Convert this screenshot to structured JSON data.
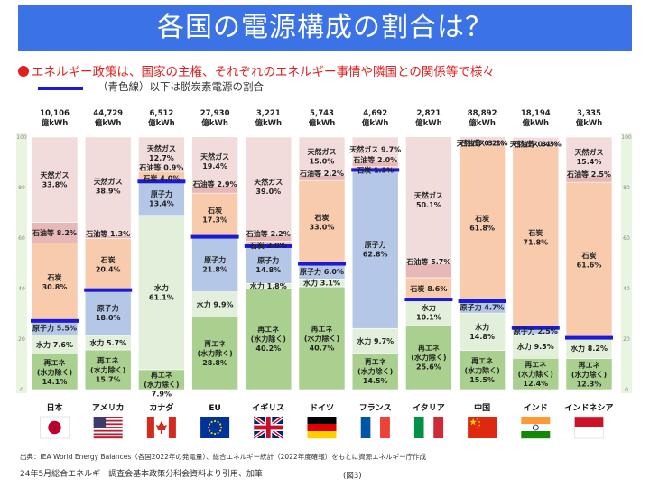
{
  "page": {
    "title": "各国の電源構成の割合は？",
    "subtitle": "エネルギー政策は、国家の主権、それぞれのエネルギー事情や隣国との関係等で様々",
    "legend_text": "（青色線）以下は脱炭素電源の割合",
    "source": "出典：IEA World Energy Balances（各国2022年の発電量）、総合エネルギー統計（2022年度確報）をもとに資源エネルギー庁作成",
    "note": "24年5月総合エネルギー調査会基本政策分科会資料より引用、加筆",
    "figure_label": "(図3)",
    "unit": "億kWh"
  },
  "chart_data": {
    "type": "bar",
    "stacked": true,
    "ylim": [
      0,
      100
    ],
    "y_ticks": [
      0,
      20,
      40,
      60,
      80,
      100
    ],
    "colors": {
      "renewable": "#a9d08e",
      "hydro": "#e2efda",
      "nuclear": "#b4c7e7",
      "coal": "#f8cbad",
      "oil": "#e6b8b7",
      "gas": "#f2dcdb",
      "decarb_line": "#1a1ad8"
    },
    "countries": [
      {
        "name": "日本",
        "total": "10,106",
        "flag": "japan",
        "segments": [
          {
            "type": "renewable",
            "value": 14.1,
            "label": "再エネ\n(水力除く)\n14.1%"
          },
          {
            "type": "hydro",
            "value": 7.6,
            "label": "水力 7.6%"
          },
          {
            "type": "nuclear",
            "value": 5.5,
            "label": "原子力 5.5%"
          },
          {
            "type": "coal",
            "value": 30.8,
            "label": "石炭\n30.8%"
          },
          {
            "type": "oil",
            "value": 8.2,
            "label": "石油等 8.2%"
          },
          {
            "type": "gas",
            "value": 33.8,
            "label": "天然ガス\n33.8%"
          }
        ]
      },
      {
        "name": "アメリカ",
        "total": "44,729",
        "flag": "usa",
        "segments": [
          {
            "type": "renewable",
            "value": 15.7,
            "label": "再エネ\n(水力除く)\n15.7%"
          },
          {
            "type": "hydro",
            "value": 5.7,
            "label": "水力 5.7%"
          },
          {
            "type": "nuclear",
            "value": 18.0,
            "label": "原子力\n18.0%"
          },
          {
            "type": "coal",
            "value": 20.4,
            "label": "石炭\n20.4%"
          },
          {
            "type": "oil",
            "value": 1.3,
            "label": "石油等 1.3%"
          },
          {
            "type": "gas",
            "value": 38.9,
            "label": "天然ガス\n38.9%"
          }
        ]
      },
      {
        "name": "カナダ",
        "total": "6,512",
        "flag": "canada",
        "segments": [
          {
            "type": "renewable",
            "value": 7.9,
            "label": "再エネ\n(水力除く)\n7.9%"
          },
          {
            "type": "hydro",
            "value": 61.1,
            "label": "水力\n61.1%"
          },
          {
            "type": "nuclear",
            "value": 13.4,
            "label": "原子力\n13.4%"
          },
          {
            "type": "coal",
            "value": 4.0,
            "label": "石炭 4.0%"
          },
          {
            "type": "oil",
            "value": 0.9,
            "label": "石油等 0.9%"
          },
          {
            "type": "gas",
            "value": 12.7,
            "label": "天然ガス\n12.7%"
          }
        ]
      },
      {
        "name": "EU",
        "total": "27,930",
        "flag": "eu",
        "segments": [
          {
            "type": "renewable",
            "value": 28.8,
            "label": "再エネ\n(水力除く)\n28.8%"
          },
          {
            "type": "hydro",
            "value": 9.9,
            "label": "水力 9.9%"
          },
          {
            "type": "nuclear",
            "value": 21.8,
            "label": "原子力\n21.8%"
          },
          {
            "type": "coal",
            "value": 17.3,
            "label": "石炭\n17.3%"
          },
          {
            "type": "oil",
            "value": 2.9,
            "label": "石油等 2.9%"
          },
          {
            "type": "gas",
            "value": 19.4,
            "label": "天然ガス\n19.4%"
          }
        ]
      },
      {
        "name": "イギリス",
        "total": "3,221",
        "flag": "uk",
        "segments": [
          {
            "type": "renewable",
            "value": 40.2,
            "label": "再エネ\n(水力除く)\n40.2%"
          },
          {
            "type": "hydro",
            "value": 1.8,
            "label": "水力 1.8%"
          },
          {
            "type": "nuclear",
            "value": 14.8,
            "label": "原子力\n14.8%"
          },
          {
            "type": "coal",
            "value": 2.0,
            "label": "石炭 2.0%"
          },
          {
            "type": "oil",
            "value": 2.2,
            "label": "石油等 2.2%"
          },
          {
            "type": "gas",
            "value": 39.0,
            "label": "天然ガス\n39.0%"
          }
        ]
      },
      {
        "name": "ドイツ",
        "total": "5,743",
        "flag": "germany",
        "segments": [
          {
            "type": "renewable",
            "value": 40.7,
            "label": "再エネ\n(水力除く)\n40.7%"
          },
          {
            "type": "hydro",
            "value": 3.1,
            "label": "水力 3.1%"
          },
          {
            "type": "nuclear",
            "value": 6.0,
            "label": "原子力 6.0%"
          },
          {
            "type": "coal",
            "value": 33.0,
            "label": "石炭\n33.0%"
          },
          {
            "type": "oil",
            "value": 2.2,
            "label": "石油等 2.2%"
          },
          {
            "type": "gas",
            "value": 15.0,
            "label": "天然ガス\n15.0%"
          }
        ]
      },
      {
        "name": "フランス",
        "total": "4,692",
        "flag": "france",
        "segments": [
          {
            "type": "renewable",
            "value": 14.5,
            "label": "再エネ\n(水力除く)\n14.5%"
          },
          {
            "type": "hydro",
            "value": 9.7,
            "label": "水力 9.7%"
          },
          {
            "type": "nuclear",
            "value": 62.8,
            "label": "原子力\n62.8%"
          },
          {
            "type": "coal",
            "value": 1.3,
            "label": "石炭 1.3%"
          },
          {
            "type": "oil",
            "value": 2.0,
            "label": "石油等 2.0%"
          },
          {
            "type": "gas",
            "value": 9.7,
            "label": "天然ガス 9.7%"
          }
        ]
      },
      {
        "name": "イタリア",
        "total": "2,821",
        "flag": "italy",
        "segments": [
          {
            "type": "renewable",
            "value": 25.6,
            "label": "再エネ\n(水力除く)\n25.6%"
          },
          {
            "type": "hydro",
            "value": 10.1,
            "label": "水力\n10.1%"
          },
          {
            "type": "nuclear",
            "value": 0,
            "label": ""
          },
          {
            "type": "coal",
            "value": 8.6,
            "label": "石炭 8.6%"
          },
          {
            "type": "oil",
            "value": 5.7,
            "label": "石油等 5.7%"
          },
          {
            "type": "gas",
            "value": 50.1,
            "label": "天然ガス\n50.1%"
          }
        ]
      },
      {
        "name": "中国",
        "total": "88,892",
        "flag": "china",
        "segments": [
          {
            "type": "renewable",
            "value": 15.5,
            "label": "再エネ\n(水力除く)\n15.5%"
          },
          {
            "type": "hydro",
            "value": 14.8,
            "label": "水力\n14.8%"
          },
          {
            "type": "nuclear",
            "value": 4.7,
            "label": "原子力 4.7%"
          },
          {
            "type": "coal",
            "value": 61.8,
            "label": "石炭\n61.8%"
          },
          {
            "type": "oil",
            "value": 0.2,
            "label": "石油等 0.2%"
          },
          {
            "type": "gas",
            "value": 3.1,
            "label": "天然ガス 3.1%"
          }
        ]
      },
      {
        "name": "インド",
        "total": "18,194",
        "flag": "india",
        "segments": [
          {
            "type": "renewable",
            "value": 12.4,
            "label": "再エネ\n(水力除く)\n12.4%"
          },
          {
            "type": "hydro",
            "value": 9.5,
            "label": "水力 9.5%"
          },
          {
            "type": "nuclear",
            "value": 2.5,
            "label": "原子力 2.5%"
          },
          {
            "type": "coal",
            "value": 71.8,
            "label": "石炭\n71.8%"
          },
          {
            "type": "oil",
            "value": 0.4,
            "label": "石油等 0.4%"
          },
          {
            "type": "gas",
            "value": 3.3,
            "label": "天然ガス 3.3%"
          }
        ]
      },
      {
        "name": "インドネシア",
        "total": "3,335",
        "flag": "indonesia",
        "segments": [
          {
            "type": "renewable",
            "value": 12.3,
            "label": "再エネ\n(水力除く)\n12.3%"
          },
          {
            "type": "hydro",
            "value": 8.2,
            "label": "水力 8.2%"
          },
          {
            "type": "nuclear",
            "value": 0,
            "label": ""
          },
          {
            "type": "coal",
            "value": 61.6,
            "label": "石炭\n61.6%"
          },
          {
            "type": "oil",
            "value": 2.5,
            "label": "石油等 2.5%"
          },
          {
            "type": "gas",
            "value": 15.4,
            "label": "天然ガス\n15.4%"
          }
        ]
      }
    ]
  }
}
